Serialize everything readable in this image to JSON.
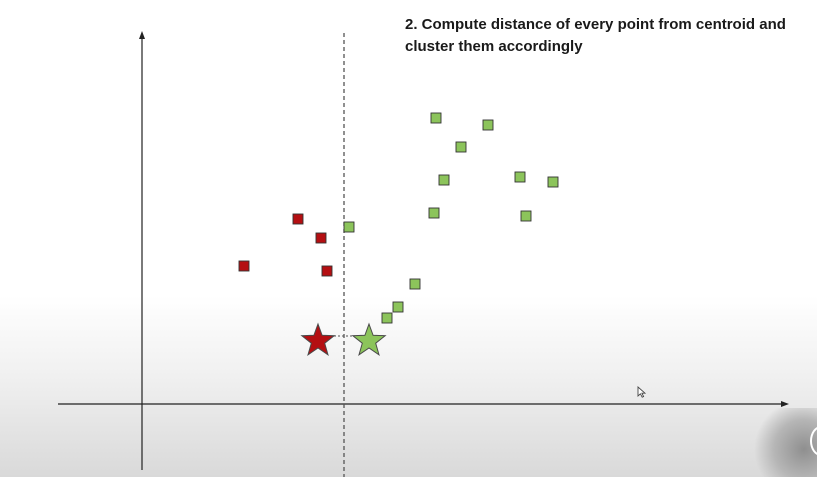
{
  "caption": {
    "line1": "2. Compute distance of every point from centroid and",
    "line2": "cluster them accordingly"
  },
  "colors": {
    "cluster_red": "#b40f12",
    "cluster_green": "#8cc45b",
    "marker_border": "#333333",
    "axis": "#222222",
    "divider": "#555555"
  },
  "points": {
    "red": [
      [
        244,
        266
      ],
      [
        298,
        219
      ],
      [
        321,
        238
      ],
      [
        327,
        271
      ]
    ],
    "green": [
      [
        436,
        118
      ],
      [
        488,
        125
      ],
      [
        461,
        147
      ],
      [
        444,
        180
      ],
      [
        520,
        177
      ],
      [
        553,
        182
      ],
      [
        434,
        213
      ],
      [
        526,
        216
      ],
      [
        349,
        227
      ],
      [
        415,
        284
      ],
      [
        398,
        307
      ],
      [
        387,
        318
      ]
    ]
  },
  "centroids": {
    "red": [
      318,
      341
    ],
    "green": [
      369,
      341
    ]
  },
  "icons": {
    "cursor": "mouse-pointer-icon",
    "corner_control": "video-control-icon"
  }
}
